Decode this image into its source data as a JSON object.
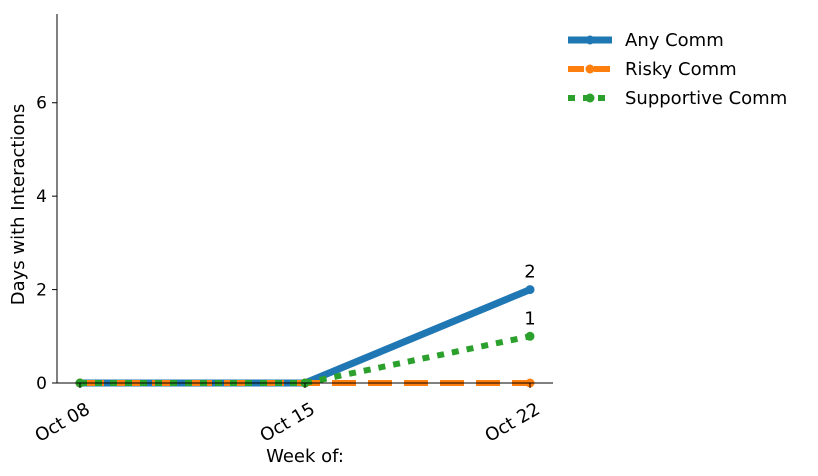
{
  "chart_data": {
    "type": "line",
    "title": "",
    "xlabel": "Week of:",
    "ylabel": "Days with Interactions",
    "categories": [
      "Oct 08",
      "Oct 15",
      "Oct 22"
    ],
    "ylim": [
      0,
      7.9
    ],
    "yticks": [
      0,
      2,
      4,
      6
    ],
    "grid": false,
    "legend_position": "outside-top-right",
    "series": [
      {
        "name": "Any Comm",
        "values": [
          0,
          0,
          2
        ],
        "color": "#1f77b4",
        "style": "solid",
        "end_label": "2"
      },
      {
        "name": "Risky Comm",
        "values": [
          0,
          0,
          0
        ],
        "color": "#ff7f0e",
        "style": "dashed",
        "end_label": ""
      },
      {
        "name": "Supportive Comm",
        "values": [
          0,
          0,
          1
        ],
        "color": "#2ca02c",
        "style": "dotted",
        "end_label": "1"
      }
    ]
  }
}
